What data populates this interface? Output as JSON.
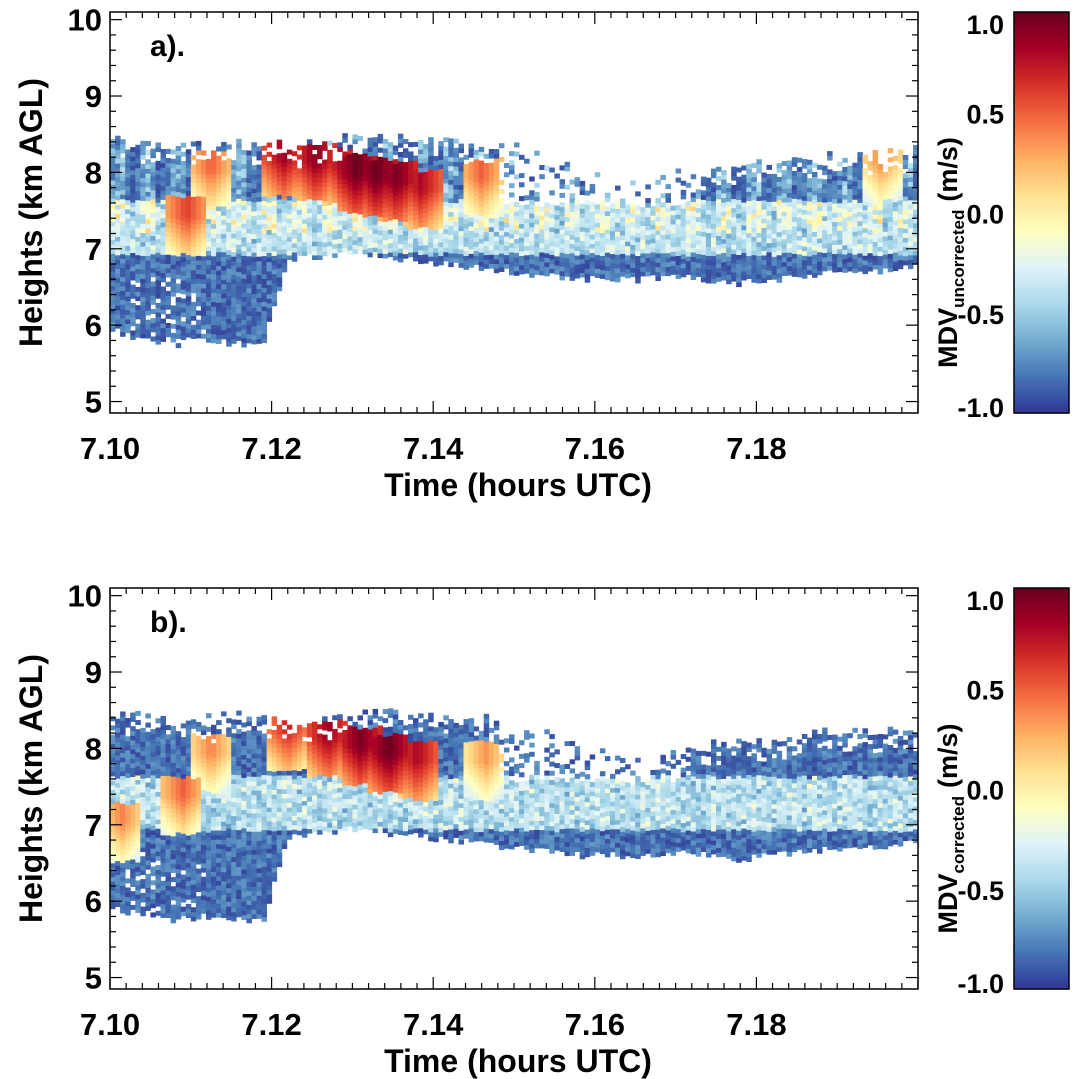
{
  "chart_data": [
    {
      "type": "heatmap",
      "panel_label": "a).",
      "xlabel": "Time (hours UTC)",
      "ylabel": "Heights (km AGL)",
      "xlim": [
        7.1,
        7.2
      ],
      "ylim": [
        4.85,
        10.1
      ],
      "x_ticks": [
        7.1,
        7.12,
        7.14,
        7.16,
        7.18
      ],
      "x_tick_labels": [
        "7.10",
        "7.12",
        "7.14",
        "7.16",
        "7.18"
      ],
      "y_ticks": [
        5,
        6,
        7,
        8,
        9,
        10
      ],
      "y_tick_labels": [
        "5",
        "6",
        "7",
        "8",
        "9",
        "10"
      ],
      "colorbar": {
        "label_main": "MDV",
        "label_sub": "uncorrected",
        "label_unit": "(m/s)",
        "range": [
          -1.0,
          1.0
        ],
        "ticks": [
          1.0,
          0.5,
          0.0,
          -0.5,
          -1.0
        ],
        "tick_labels": [
          "1.0",
          "0.5",
          "0.0",
          "-0.5",
          "-1.0"
        ],
        "colors": [
          "#313695",
          "#4575b4",
          "#74add1",
          "#abd9e9",
          "#e0f3f8",
          "#ffffbf",
          "#fee090",
          "#fdae61",
          "#f46d43",
          "#d73027",
          "#a50026",
          "#67001f"
        ]
      },
      "cloud": {
        "x": [
          7.1,
          7.104,
          7.108,
          7.112,
          7.116,
          7.119,
          7.122,
          7.126,
          7.13,
          7.134,
          7.138,
          7.142,
          7.146,
          7.15,
          7.154,
          7.158,
          7.162,
          7.166,
          7.17,
          7.174,
          7.178,
          7.182,
          7.186,
          7.19,
          7.194,
          7.198,
          7.2
        ],
        "top_km": [
          8.45,
          8.4,
          8.35,
          8.35,
          8.4,
          8.35,
          8.3,
          8.35,
          8.45,
          8.45,
          8.4,
          8.4,
          8.35,
          8.3,
          8.25,
          8.1,
          7.85,
          7.8,
          7.95,
          8.0,
          8.05,
          8.1,
          8.15,
          8.2,
          8.2,
          8.25,
          8.25
        ],
        "base_km": [
          5.95,
          5.8,
          5.75,
          5.8,
          5.75,
          5.75,
          6.85,
          6.9,
          6.95,
          6.9,
          6.85,
          6.8,
          6.75,
          6.7,
          6.65,
          6.6,
          6.6,
          6.6,
          6.65,
          6.6,
          6.55,
          6.6,
          6.65,
          6.7,
          6.7,
          6.75,
          6.75
        ],
        "updrafts": [
          {
            "x": 7.1215,
            "h": 8.15,
            "value": 0.85
          },
          {
            "x": 7.1255,
            "h": 8.1,
            "value": 0.9
          },
          {
            "x": 7.1285,
            "h": 8.05,
            "value": 0.8
          },
          {
            "x": 7.1305,
            "h": 7.95,
            "value": 1.0
          },
          {
            "x": 7.133,
            "h": 7.9,
            "value": 1.0
          },
          {
            "x": 7.1355,
            "h": 7.85,
            "value": 0.95
          },
          {
            "x": 7.1385,
            "h": 7.75,
            "value": 0.8
          },
          {
            "x": 7.1125,
            "h": 8.0,
            "value": 0.5
          },
          {
            "x": 7.146,
            "h": 7.9,
            "value": 0.5
          },
          {
            "x": 7.1095,
            "h": 7.4,
            "value": 0.6
          },
          {
            "x": 7.1955,
            "h": 8.1,
            "value": 0.4
          }
        ]
      }
    },
    {
      "type": "heatmap",
      "panel_label": "b).",
      "xlabel": "Time (hours UTC)",
      "ylabel": "Heights (km AGL)",
      "xlim": [
        7.1,
        7.2
      ],
      "ylim": [
        4.85,
        10.1
      ],
      "x_ticks": [
        7.1,
        7.12,
        7.14,
        7.16,
        7.18
      ],
      "x_tick_labels": [
        "7.10",
        "7.12",
        "7.14",
        "7.16",
        "7.18"
      ],
      "y_ticks": [
        5,
        6,
        7,
        8,
        9,
        10
      ],
      "y_tick_labels": [
        "5",
        "6",
        "7",
        "8",
        "9",
        "10"
      ],
      "colorbar": {
        "label_main": "MDV",
        "label_sub": "corrected",
        "label_unit": "(m/s)",
        "range": [
          -1.0,
          1.0
        ],
        "ticks": [
          1.0,
          0.5,
          0.0,
          -0.5,
          -1.0
        ],
        "tick_labels": [
          "1.0",
          "0.5",
          "0.0",
          "-0.5",
          "-1.0"
        ],
        "colors": [
          "#313695",
          "#4575b4",
          "#74add1",
          "#abd9e9",
          "#e0f3f8",
          "#ffffbf",
          "#fee090",
          "#fdae61",
          "#f46d43",
          "#d73027",
          "#a50026",
          "#67001f"
        ]
      },
      "cloud": {
        "x": [
          7.1,
          7.104,
          7.108,
          7.112,
          7.116,
          7.119,
          7.122,
          7.126,
          7.13,
          7.134,
          7.138,
          7.142,
          7.146,
          7.15,
          7.154,
          7.158,
          7.162,
          7.166,
          7.17,
          7.174,
          7.178,
          7.182,
          7.186,
          7.19,
          7.194,
          7.198,
          7.2
        ],
        "top_km": [
          8.45,
          8.4,
          8.35,
          8.35,
          8.4,
          8.35,
          8.3,
          8.35,
          8.45,
          8.45,
          8.4,
          8.4,
          8.35,
          8.3,
          8.25,
          8.1,
          7.85,
          7.8,
          7.95,
          8.0,
          8.05,
          8.1,
          8.15,
          8.2,
          8.2,
          8.25,
          8.25
        ],
        "base_km": [
          5.95,
          5.8,
          5.75,
          5.8,
          5.75,
          5.75,
          6.85,
          6.9,
          6.95,
          6.9,
          6.85,
          6.8,
          6.75,
          6.7,
          6.65,
          6.6,
          6.6,
          6.6,
          6.65,
          6.6,
          6.55,
          6.6,
          6.65,
          6.7,
          6.7,
          6.75,
          6.75
        ],
        "updrafts": [
          {
            "x": 7.122,
            "h": 8.2,
            "value": 0.7
          },
          {
            "x": 7.127,
            "h": 8.1,
            "value": 0.85
          },
          {
            "x": 7.131,
            "h": 8.0,
            "value": 0.95
          },
          {
            "x": 7.1345,
            "h": 7.9,
            "value": 1.0
          },
          {
            "x": 7.138,
            "h": 7.8,
            "value": 0.8
          },
          {
            "x": 7.1125,
            "h": 7.9,
            "value": 0.4
          },
          {
            "x": 7.1465,
            "h": 7.8,
            "value": 0.35
          },
          {
            "x": 7.109,
            "h": 7.35,
            "value": 0.5
          },
          {
            "x": 7.1015,
            "h": 7.0,
            "value": 0.4
          }
        ]
      }
    }
  ]
}
